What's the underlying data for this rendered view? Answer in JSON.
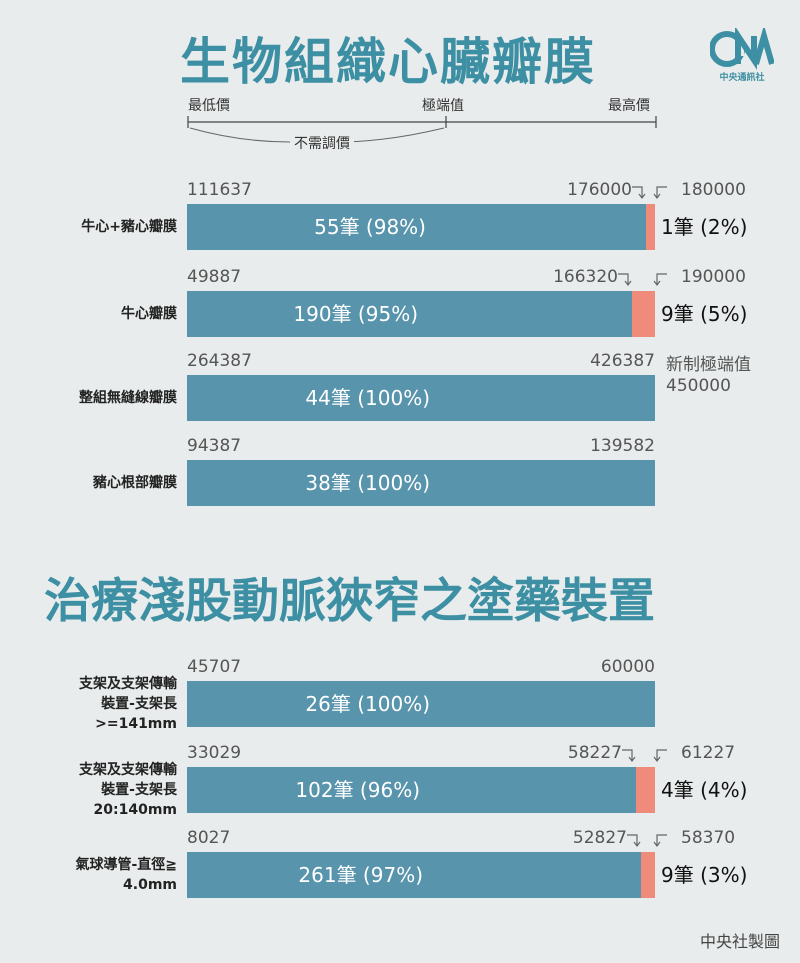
{
  "header": {
    "title1": "生物組織心臟瓣膜",
    "title2": "治療淺股動脈狹窄之塗藥裝置",
    "logo_text": "中央通訊社",
    "logo_mark": "CNA",
    "footer": "中央社製圖"
  },
  "legend": {
    "min_label": "最低價",
    "extreme_label": "極端值",
    "max_label": "最高價",
    "no_adjust_label": "不需調價"
  },
  "colors": {
    "title": "#3d8fa3",
    "bar_main": "#5894ac",
    "bar_extreme": "#ef8b7b",
    "background": "#e9ecec"
  },
  "chart_data": [
    {
      "type": "bar",
      "title": "生物組織心臟瓣膜",
      "rows": [
        {
          "label": "牛心+豬心瓣膜",
          "min": "111637",
          "extreme": "176000",
          "max": "180000",
          "main_text": "55筆 (98%)",
          "ext_text": "1筆 (2%)",
          "main_share": 0.98,
          "ext_share": 0.02
        },
        {
          "label": "牛心瓣膜",
          "min": "49887",
          "extreme": "166320",
          "max": "190000",
          "main_text": "190筆 (95%)",
          "ext_text": "9筆 (5%)",
          "main_share": 0.95,
          "ext_share": 0.05
        },
        {
          "label": "整組無縫線瓣膜",
          "min": "264387",
          "extreme": "426387",
          "max": "",
          "main_text": "44筆 (100%)",
          "ext_text": "",
          "main_share": 1.0,
          "ext_share": 0,
          "note_line1": "新制極端值",
          "note_line2": "450000"
        },
        {
          "label": "豬心根部瓣膜",
          "min": "94387",
          "extreme": "139582",
          "max": "",
          "main_text": "38筆 (100%)",
          "ext_text": "",
          "main_share": 1.0,
          "ext_share": 0
        }
      ]
    },
    {
      "type": "bar",
      "title": "治療淺股動脈狹窄之塗藥裝置",
      "rows": [
        {
          "label_lines": [
            "支架及支架傳輸",
            "裝置-支架長",
            ">=141mm"
          ],
          "min": "45707",
          "extreme": "60000",
          "max": "",
          "main_text": "26筆 (100%)",
          "ext_text": "",
          "main_share": 1.0,
          "ext_share": 0
        },
        {
          "label_lines": [
            "支架及支架傳輸",
            "裝置-支架長",
            "20:140mm"
          ],
          "min": "33029",
          "extreme": "58227",
          "max": "61227",
          "main_text": "102筆 (96%)",
          "ext_text": "4筆 (4%)",
          "main_share": 0.96,
          "ext_share": 0.04
        },
        {
          "label_lines": [
            "氣球導管-直徑≧",
            "4.0mm"
          ],
          "min": "8027",
          "extreme": "52827",
          "max": "58370",
          "main_text": "261筆 (97%)",
          "ext_text": "9筆 (3%)",
          "main_share": 0.97,
          "ext_share": 0.03
        }
      ]
    }
  ]
}
